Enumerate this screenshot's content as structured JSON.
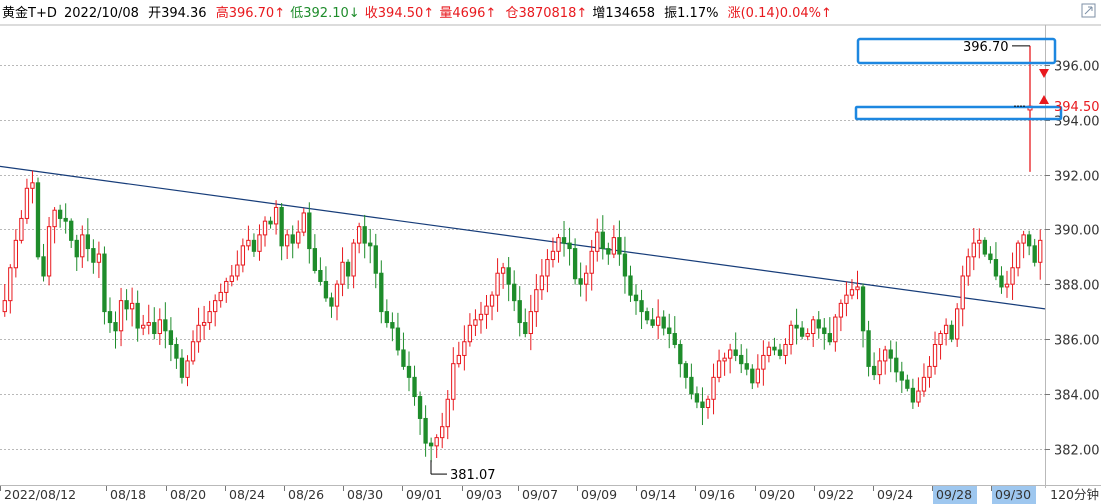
{
  "header": {
    "symbol": "黄金T+D",
    "date": "2022/10/08",
    "open": "开394.36",
    "high": "高396.70↑",
    "low": "低392.10↓",
    "close": "收394.50↑",
    "volume": "量4696↑",
    "position": "仓3870818↑",
    "increase": "增134658",
    "amplitude": "振1.17%",
    "change": "涨(0.14)0.04%↑"
  },
  "period_label": "120分钟",
  "colors": {
    "up": "#e8191e",
    "down": "#1e8c2b",
    "trendline": "#173d7a",
    "highlight": "#1d87e0",
    "grid": "#b9b9b9",
    "selected_tick_bg": "#9ec7ef"
  },
  "chart_data": {
    "type": "candlestick",
    "title": "黄金T+D 120分钟",
    "ylim": [
      381,
      397.8
    ],
    "yticks": [
      "396.00",
      "394.00",
      "392.00",
      "390.00",
      "388.00",
      "386.00",
      "384.00",
      "382.00"
    ],
    "xticks": [
      "2022/08/12",
      "08/18",
      "08/20",
      "08/24",
      "08/26",
      "08/30",
      "09/01",
      "09/03",
      "09/07",
      "09/09",
      "09/14",
      "09/16",
      "09/20",
      "09/22",
      "09/24",
      "09/28",
      "09/30"
    ],
    "selected_xticks": [
      "09/28",
      "09/30"
    ],
    "annotations": {
      "high_label": "396.70",
      "low_label": "381.07",
      "last_price": "394.50"
    },
    "last_candle": {
      "open": 394.36,
      "high": 396.7,
      "low": 392.1,
      "close": 394.5
    },
    "trendline": {
      "from": 392.3,
      "to": 387.1
    },
    "closes": [
      387.4,
      388.6,
      389.6,
      390.4,
      391.5,
      391.7,
      389.0,
      388.3,
      390.1,
      390.7,
      390.4,
      390.3,
      389.6,
      389.0,
      389.8,
      389.3,
      388.8,
      389.1,
      387.0,
      386.6,
      386.3,
      387.4,
      387.1,
      387.3,
      386.4,
      386.5,
      386.6,
      386.2,
      386.7,
      386.3,
      385.8,
      385.3,
      384.6,
      385.2,
      385.9,
      386.5,
      386.6,
      387.0,
      387.4,
      387.7,
      388.1,
      388.3,
      388.7,
      389.4,
      389.6,
      389.2,
      389.8,
      390.3,
      390.2,
      390.8,
      389.4,
      389.8,
      389.5,
      389.9,
      390.6,
      389.3,
      388.5,
      388.1,
      387.5,
      387.2,
      388.0,
      388.8,
      388.3,
      389.5,
      390.1,
      389.5,
      389.4,
      388.4,
      387.0,
      386.6,
      386.4,
      385.6,
      385.0,
      384.6,
      383.9,
      383.1,
      382.2,
      382.1,
      382.4,
      382.8,
      383.8,
      385.1,
      385.4,
      385.9,
      386.5,
      386.7,
      386.9,
      387.2,
      387.6,
      388.4,
      388.6,
      388.0,
      387.4,
      386.6,
      386.2,
      387.0,
      387.8,
      388.3,
      388.9,
      389.2,
      389.7,
      389.5,
      389.3,
      388.2,
      388.0,
      388.4,
      389.2,
      389.9,
      389.3,
      389.1,
      389.7,
      389.1,
      388.3,
      387.6,
      387.4,
      387.0,
      386.7,
      386.5,
      386.8,
      386.4,
      386.2,
      385.8,
      385.1,
      384.6,
      384.0,
      383.7,
      383.5,
      383.8,
      384.6,
      385.2,
      385.3,
      385.6,
      385.4,
      385.1,
      384.9,
      384.4,
      384.9,
      385.4,
      385.7,
      385.6,
      385.4,
      385.8,
      386.5,
      386.4,
      386.1,
      386.2,
      386.7,
      386.4,
      386.2,
      385.9,
      386.8,
      387.3,
      387.6,
      387.8,
      387.9,
      386.3,
      385.0,
      384.7,
      385.2,
      385.6,
      385.3,
      384.8,
      384.5,
      384.2,
      383.7,
      384.1,
      384.6,
      385.0,
      385.8,
      386.2,
      386.5,
      386.0,
      387.1,
      388.3,
      389.0,
      389.5,
      389.6,
      389.1,
      388.9,
      388.3,
      387.9,
      388.0,
      388.6,
      389.5,
      389.8,
      389.4,
      388.8,
      389.6
    ]
  }
}
